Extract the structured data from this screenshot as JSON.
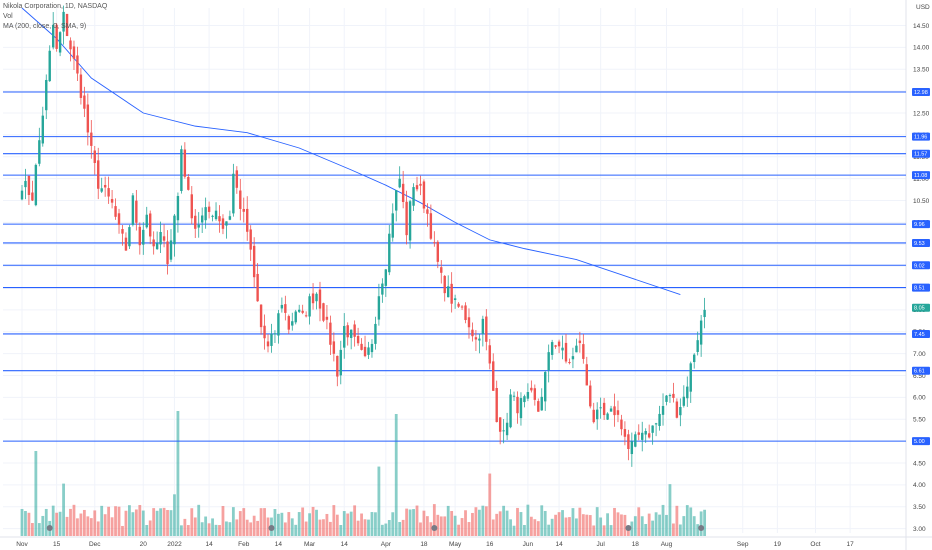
{
  "header": {
    "symbol_line": "Nikola Corporation, 1D, NASDAQ",
    "vol_label": "Vol",
    "ma_line": "MA (200, close, 0, SMA, 9)"
  },
  "chart_data": {
    "type": "candlestick",
    "currency_label": "USD",
    "y_range": [
      2.9,
      14.9
    ],
    "y_ticks": [
      "14.50",
      "14.00",
      "13.50",
      "13.00",
      "12.50",
      "12.00",
      "11.50",
      "11.00",
      "10.50",
      "10.00",
      "9.50",
      "9.00",
      "8.50",
      "8.00",
      "7.50",
      "7.00",
      "6.50",
      "6.00",
      "5.50",
      "5.00",
      "4.50",
      "4.00",
      "3.50",
      "3.00"
    ],
    "x_ticks": [
      {
        "label": "Nov",
        "i": 0
      },
      {
        "label": "15",
        "i": 10
      },
      {
        "label": "Dec",
        "i": 21
      },
      {
        "label": "20",
        "i": 35
      },
      {
        "label": "2022",
        "i": 44
      },
      {
        "label": "14",
        "i": 54
      },
      {
        "label": "Feb",
        "i": 64
      },
      {
        "label": "14",
        "i": 74
      },
      {
        "label": "Mar",
        "i": 83
      },
      {
        "label": "14",
        "i": 93
      },
      {
        "label": "Apr",
        "i": 105
      },
      {
        "label": "18",
        "i": 116
      },
      {
        "label": "May",
        "i": 125
      },
      {
        "label": "16",
        "i": 135
      },
      {
        "label": "Jun",
        "i": 146
      },
      {
        "label": "14",
        "i": 155
      },
      {
        "label": "Jul",
        "i": 167
      },
      {
        "label": "18",
        "i": 177
      },
      {
        "label": "Aug",
        "i": 186
      },
      {
        "label": "Sep",
        "i": 208
      },
      {
        "label": "19",
        "i": 218
      },
      {
        "label": "Oct",
        "i": 229
      },
      {
        "label": "17",
        "i": 239
      }
    ],
    "horizontal_levels": [
      {
        "value": 12.98,
        "tag": "12.98"
      },
      {
        "value": 11.96,
        "tag": "11.96"
      },
      {
        "value": 11.57,
        "tag": "11.57"
      },
      {
        "value": 11.08,
        "tag": "11.08"
      },
      {
        "value": 9.96,
        "tag": "9.96"
      },
      {
        "value": 9.53,
        "tag": "9.53"
      },
      {
        "value": 9.02,
        "tag": "9.02"
      },
      {
        "value": 8.51,
        "tag": "8.51"
      },
      {
        "value": 7.45,
        "tag": "7.45"
      },
      {
        "value": 6.61,
        "tag": "6.61"
      },
      {
        "value": 5.0,
        "tag": "5.00"
      }
    ],
    "last_price": {
      "value": 8.05,
      "tag": "8.05"
    },
    "ma200": [
      {
        "i": 0,
        "v": 14.9
      },
      {
        "i": 10,
        "v": 14.2
      },
      {
        "i": 20,
        "v": 13.3
      },
      {
        "i": 35,
        "v": 12.5
      },
      {
        "i": 50,
        "v": 12.2
      },
      {
        "i": 65,
        "v": 12.05
      },
      {
        "i": 80,
        "v": 11.7
      },
      {
        "i": 95,
        "v": 11.2
      },
      {
        "i": 105,
        "v": 10.85
      },
      {
        "i": 115,
        "v": 10.45
      },
      {
        "i": 125,
        "v": 10.0
      },
      {
        "i": 135,
        "v": 9.6
      },
      {
        "i": 145,
        "v": 9.4
      },
      {
        "i": 160,
        "v": 9.15
      },
      {
        "i": 175,
        "v": 8.75
      },
      {
        "i": 190,
        "v": 8.35
      }
    ],
    "anchors": [
      [
        0,
        10.9
      ],
      [
        3,
        10.6
      ],
      [
        6,
        12.5
      ],
      [
        9,
        14.5
      ],
      [
        10,
        13.9
      ],
      [
        12,
        14.7
      ],
      [
        14,
        14.0
      ],
      [
        17,
        13.0
      ],
      [
        20,
        11.6
      ],
      [
        22,
        10.9
      ],
      [
        26,
        10.4
      ],
      [
        28,
        9.8
      ],
      [
        30,
        9.4
      ],
      [
        32,
        10.5
      ],
      [
        34,
        9.6
      ],
      [
        36,
        10.2
      ],
      [
        38,
        9.3
      ],
      [
        40,
        9.7
      ],
      [
        42,
        9.2
      ],
      [
        45,
        10.6
      ],
      [
        46,
        11.7
      ],
      [
        48,
        10.6
      ],
      [
        50,
        9.9
      ],
      [
        53,
        10.2
      ],
      [
        56,
        10.3
      ],
      [
        58,
        9.9
      ],
      [
        60,
        10.2
      ],
      [
        61,
        11.1
      ],
      [
        63,
        10.4
      ],
      [
        65,
        9.8
      ],
      [
        67,
        8.7
      ],
      [
        69,
        7.6
      ],
      [
        71,
        7.1
      ],
      [
        73,
        7.5
      ],
      [
        75,
        8.2
      ],
      [
        77,
        7.6
      ],
      [
        79,
        8.0
      ],
      [
        81,
        7.8
      ],
      [
        83,
        8.2
      ],
      [
        85,
        8.4
      ],
      [
        87,
        7.9
      ],
      [
        89,
        7.3
      ],
      [
        91,
        6.6
      ],
      [
        93,
        7.6
      ],
      [
        95,
        7.4
      ],
      [
        97,
        7.1
      ],
      [
        99,
        6.8
      ],
      [
        101,
        7.3
      ],
      [
        103,
        8.4
      ],
      [
        105,
        9.1
      ],
      [
        107,
        10.3
      ],
      [
        109,
        11.0
      ],
      [
        111,
        9.8
      ],
      [
        113,
        10.9
      ],
      [
        115,
        10.7
      ],
      [
        117,
        10.2
      ],
      [
        119,
        9.4
      ],
      [
        121,
        8.7
      ],
      [
        123,
        8.4
      ],
      [
        125,
        8.1
      ],
      [
        127,
        8.0
      ],
      [
        129,
        7.7
      ],
      [
        131,
        7.3
      ],
      [
        133,
        7.7
      ],
      [
        135,
        6.7
      ],
      [
        137,
        5.6
      ],
      [
        139,
        5.1
      ],
      [
        141,
        6.0
      ],
      [
        143,
        5.8
      ],
      [
        145,
        5.9
      ],
      [
        147,
        6.0
      ],
      [
        149,
        5.7
      ],
      [
        151,
        6.5
      ],
      [
        153,
        7.3
      ],
      [
        155,
        7.2
      ],
      [
        157,
        6.8
      ],
      [
        159,
        6.9
      ],
      [
        161,
        7.3
      ],
      [
        163,
        6.3
      ],
      [
        165,
        5.5
      ],
      [
        167,
        5.6
      ],
      [
        169,
        5.5
      ],
      [
        171,
        5.7
      ],
      [
        173,
        5.4
      ],
      [
        175,
        4.8
      ],
      [
        177,
        5.0
      ],
      [
        179,
        5.3
      ],
      [
        181,
        5.2
      ],
      [
        183,
        5.4
      ],
      [
        185,
        5.8
      ],
      [
        187,
        6.1
      ],
      [
        189,
        5.7
      ],
      [
        191,
        6.0
      ],
      [
        193,
        6.7
      ],
      [
        195,
        7.4
      ],
      [
        197,
        8.0
      ]
    ],
    "volume_markers": [
      [
        8,
        "S"
      ],
      [
        72,
        "S"
      ],
      [
        119,
        "S"
      ],
      [
        175,
        "S"
      ],
      [
        196,
        "S"
      ]
    ]
  }
}
